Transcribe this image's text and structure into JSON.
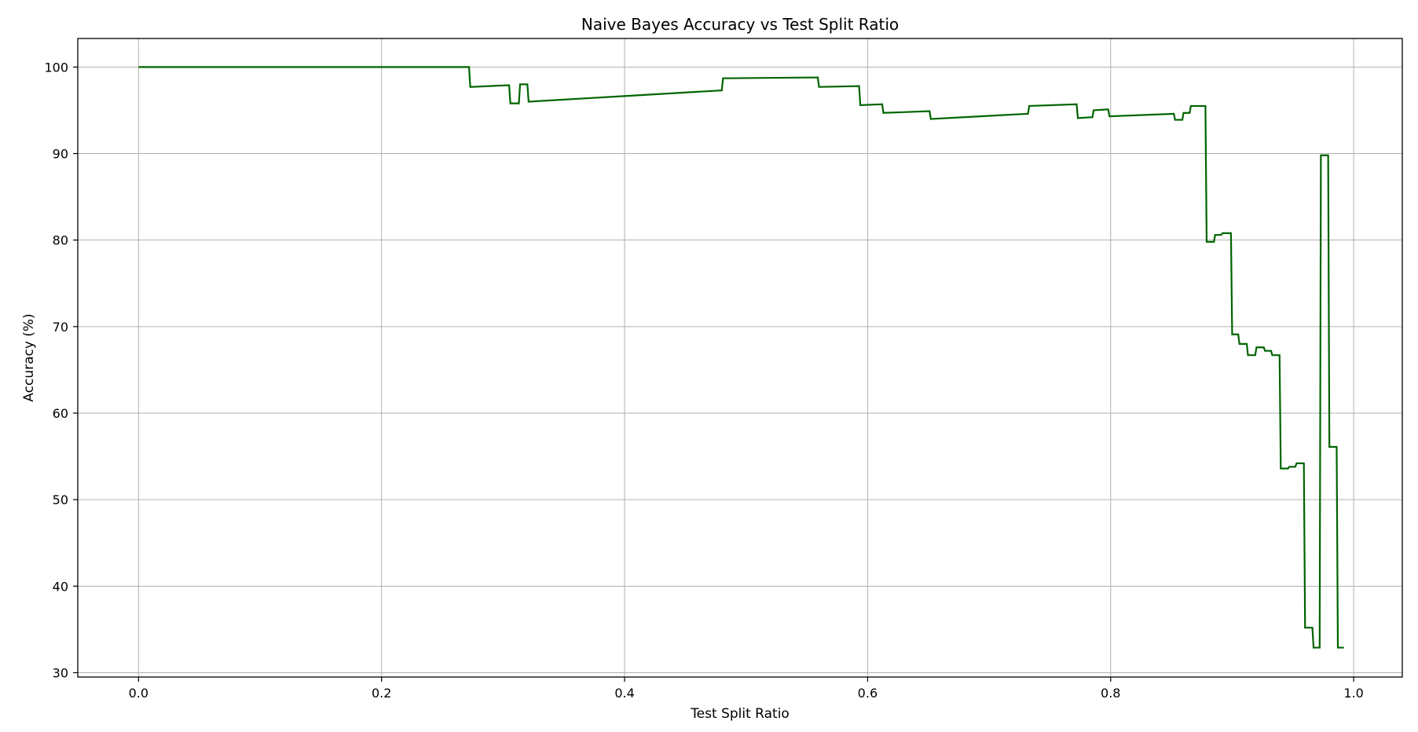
{
  "chart_data": {
    "type": "line",
    "title": "Naive Bayes Accuracy vs Test Split Ratio",
    "xlabel": "Test Split Ratio",
    "ylabel": "Accuracy (%)",
    "xlim": [
      -0.05,
      1.04
    ],
    "ylim": [
      29.5,
      103.3
    ],
    "xticks": [
      0.0,
      0.2,
      0.4,
      0.6,
      0.8,
      1.0
    ],
    "xtick_labels": [
      "0.0",
      "0.2",
      "0.4",
      "0.6",
      "0.8",
      "1.0"
    ],
    "yticks": [
      30,
      40,
      50,
      60,
      70,
      80,
      90,
      100
    ],
    "ytick_labels": [
      "30",
      "40",
      "50",
      "60",
      "70",
      "80",
      "90",
      "100"
    ],
    "grid": true,
    "series": [
      {
        "color": "#006400",
        "x": [
          0.0,
          0.272,
          0.273,
          0.305,
          0.306,
          0.313,
          0.314,
          0.32,
          0.321,
          0.48,
          0.481,
          0.559,
          0.56,
          0.593,
          0.594,
          0.612,
          0.613,
          0.651,
          0.652,
          0.732,
          0.733,
          0.772,
          0.773,
          0.785,
          0.786,
          0.798,
          0.799,
          0.852,
          0.853,
          0.859,
          0.86,
          0.865,
          0.866,
          0.878,
          0.879,
          0.885,
          0.886,
          0.891,
          0.892,
          0.899,
          0.9,
          0.905,
          0.906,
          0.912,
          0.913,
          0.919,
          0.92,
          0.926,
          0.927,
          0.932,
          0.933,
          0.939,
          0.94,
          0.946,
          0.947,
          0.952,
          0.953,
          0.959,
          0.96,
          0.966,
          0.967,
          0.972,
          0.973,
          0.979,
          0.98,
          0.986,
          0.987,
          0.992
        ],
        "y": [
          100,
          100,
          97.7,
          97.9,
          95.8,
          95.8,
          98.0,
          98.0,
          96.0,
          97.3,
          98.7,
          98.8,
          97.7,
          97.8,
          95.6,
          95.7,
          94.7,
          94.9,
          94.0,
          94.6,
          95.5,
          95.7,
          94.1,
          94.2,
          95.0,
          95.1,
          94.3,
          94.6,
          93.9,
          93.9,
          94.7,
          94.7,
          95.5,
          95.5,
          79.8,
          79.8,
          80.6,
          80.6,
          80.8,
          80.8,
          69.1,
          69.1,
          68.0,
          68.0,
          66.7,
          66.7,
          67.6,
          67.6,
          67.2,
          67.2,
          66.7,
          66.7,
          53.6,
          53.6,
          53.8,
          53.8,
          54.2,
          54.2,
          35.2,
          35.2,
          32.9,
          32.9,
          89.8,
          89.8,
          56.1,
          56.1,
          32.9,
          32.9
        ]
      }
    ]
  }
}
